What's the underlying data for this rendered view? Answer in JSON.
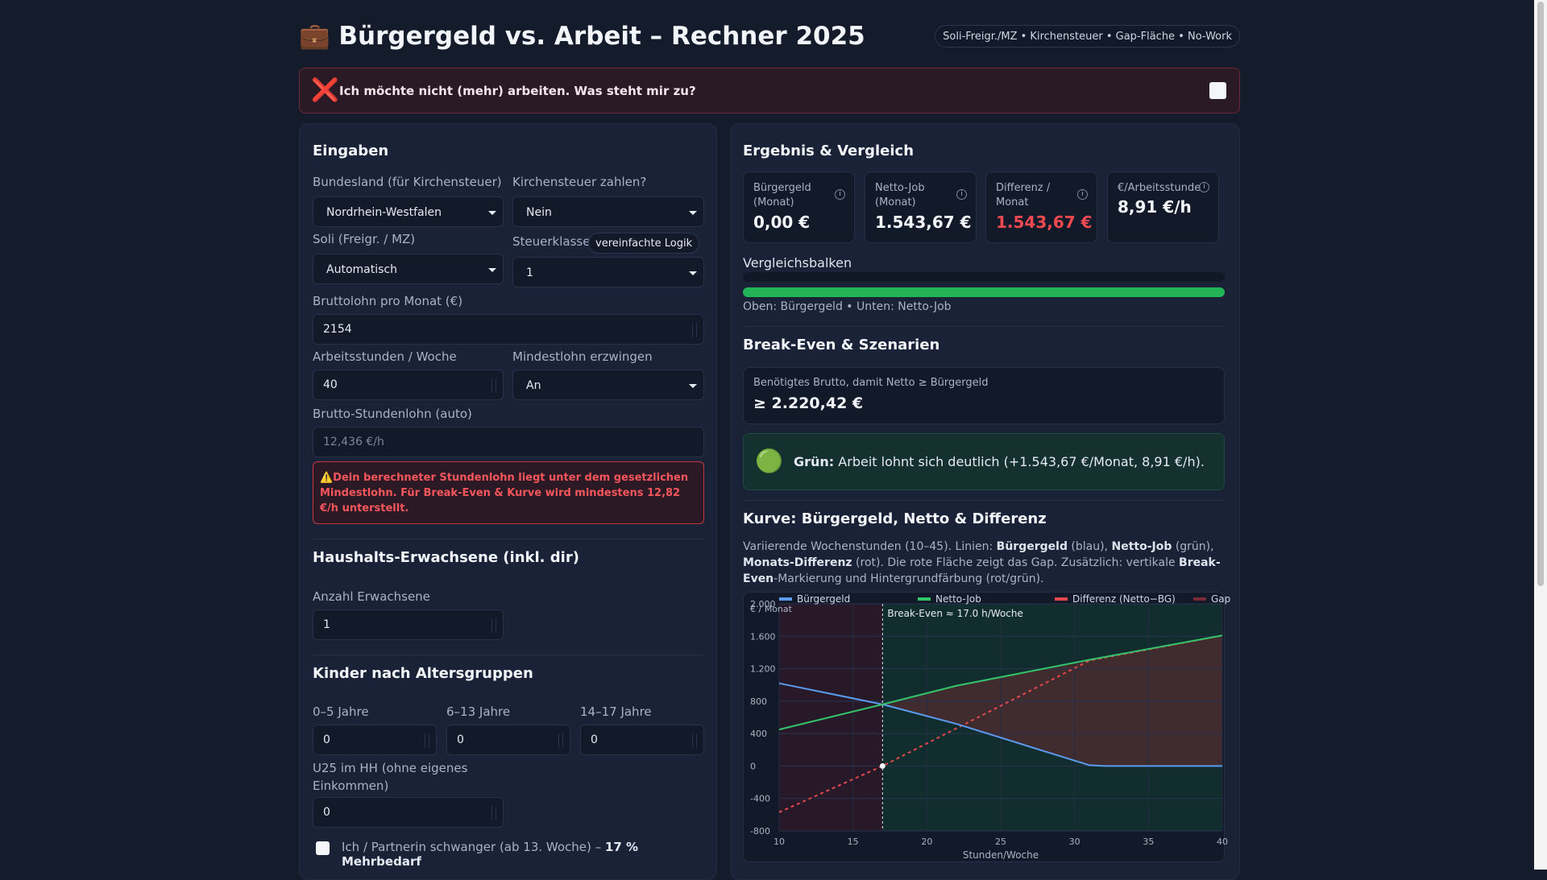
{
  "header": {
    "title": "💼 Bürgergeld vs. Arbeit – Rechner 2025",
    "tags": "Soli-Freigr./MZ • Kirchensteuer • Gap-Fläche • No-Work"
  },
  "nowork": {
    "icon": "❌",
    "label": "Ich möchte nicht (mehr) arbeiten. Was steht mir zu?",
    "checked": false
  },
  "inputs": {
    "heading": "Eingaben",
    "bundesland": {
      "label": "Bundesland (für Kirchensteuer)",
      "value": "Nordrhein-Westfalen"
    },
    "kirchensteuer": {
      "label": "Kirchensteuer zahlen?",
      "value": "Nein"
    },
    "soli": {
      "label": "Soli (Freigr. / MZ)",
      "value": "Automatisch"
    },
    "steuerklasse": {
      "label": "Steuerklasse",
      "badge": "vereinfachte Logik",
      "value": "1"
    },
    "brutto": {
      "label": "Bruttolohn pro Monat (€)",
      "value": "2154"
    },
    "stunden": {
      "label": "Arbeitsstunden / Woche",
      "value": "40"
    },
    "mindestlohn": {
      "label": "Mindestlohn erzwingen",
      "value": "An"
    },
    "stundenlohn": {
      "label": "Brutto-Stundenlohn (auto)",
      "value": "12,436 €/h"
    },
    "warning": "⚠️Dein berechneter Stundenlohn liegt unter dem gesetzlichen Mindestlohn. Für Break-Even & Kurve wird mindestens 12,82 €/h unterstellt."
  },
  "household": {
    "heading": "Haushalts-Erwachsene (inkl. dir)",
    "adults_label": "Anzahl Erwachsene",
    "adults_value": "1"
  },
  "kids": {
    "heading": "Kinder nach Altersgruppen",
    "g1_label": "0–5 Jahre",
    "g1_value": "0",
    "g2_label": "6–13 Jahre",
    "g2_value": "0",
    "g3_label": "14–17 Jahre",
    "g3_value": "0",
    "u25_label": "U25 im HH (ohne eigenes Einkommen)",
    "u25_value": "0",
    "pregnant_label": "Ich / Partnerin schwanger (ab 13. Woche) – ",
    "pregnant_bold": "17 % Mehrbedarf"
  },
  "result": {
    "heading": "Ergebnis & Vergleich",
    "cards": [
      {
        "title": "Bürgergeld (Monat)",
        "value": "0,00 €",
        "color": "#f2f5fa"
      },
      {
        "title": "Netto-Job (Monat)",
        "value": "1.543,67 €",
        "color": "#f2f5fa"
      },
      {
        "title": "Differenz / Monat",
        "value": "1.543,67 €",
        "color": "#f04a50"
      },
      {
        "title": "€/Arbeitsstunde",
        "value": "8,91 €/h",
        "color": "#f2f5fa"
      }
    ],
    "bars_label": "Vergleichsbalken",
    "bar_buergergeld_fraction": 0.0,
    "bar_netto_fraction": 1.0,
    "bars_caption": "Oben: Bürgergeld • Unten: Netto-Job"
  },
  "breakeven": {
    "heading": "Break-Even & Szenarien",
    "box_label": "Benötigtes Brutto, damit Netto ≥ Bürgergeld",
    "box_value": "≥ 2.220,42 €",
    "verdict_icon": "🟢",
    "verdict_bold": "Grün:",
    "verdict_text": " Arbeit lohnt sich deutlich (+1.543,67 €/Monat, 8,91 €/h)."
  },
  "curve": {
    "heading": "Kurve: Bürgergeld, Netto & Differenz",
    "desc_parts": [
      "Variierende Wochenstunden (10–45). Linien: ",
      "Bürgergeld",
      " (blau), ",
      "Netto-Job",
      " (grün), ",
      "Monats-Differenz",
      " (rot). Die rote Fläche zeigt das Gap. Zusätzlich: vertikale ",
      "Break-Even",
      "-Markierung und Hintergrundfärbung (rot/grün)."
    ]
  },
  "chart_data": {
    "type": "line",
    "xlabel": "Stunden/Woche",
    "ylabel": "€ / Monat",
    "xlim": [
      10,
      40
    ],
    "ylim": [
      -800,
      2000
    ],
    "xticks": [
      10,
      15,
      20,
      25,
      30,
      35,
      40
    ],
    "yticks": [
      -800,
      -400,
      0,
      400,
      800,
      1200,
      1600,
      2000
    ],
    "annotation": "Break-Even ≈ 17.0 h/Woche",
    "break_even_x": 17.0,
    "series": [
      {
        "name": "Bürgergeld",
        "color": "#5b9bf0",
        "x": [
          10,
          17,
          22,
          31,
          32,
          40
        ],
        "y": [
          1020,
          760,
          520,
          10,
          0,
          0
        ]
      },
      {
        "name": "Netto-Job",
        "color": "#34c46a",
        "x": [
          10,
          17,
          22,
          31,
          40
        ],
        "y": [
          450,
          760,
          990,
          1310,
          1610
        ]
      },
      {
        "name": "Differenz (Netto−BG)",
        "color": "#e5484d",
        "x": [
          10,
          17,
          31,
          40
        ],
        "y": [
          -570,
          0,
          1300,
          1610
        ]
      },
      {
        "name": "Gap",
        "color": "#7a2a34"
      }
    ]
  }
}
